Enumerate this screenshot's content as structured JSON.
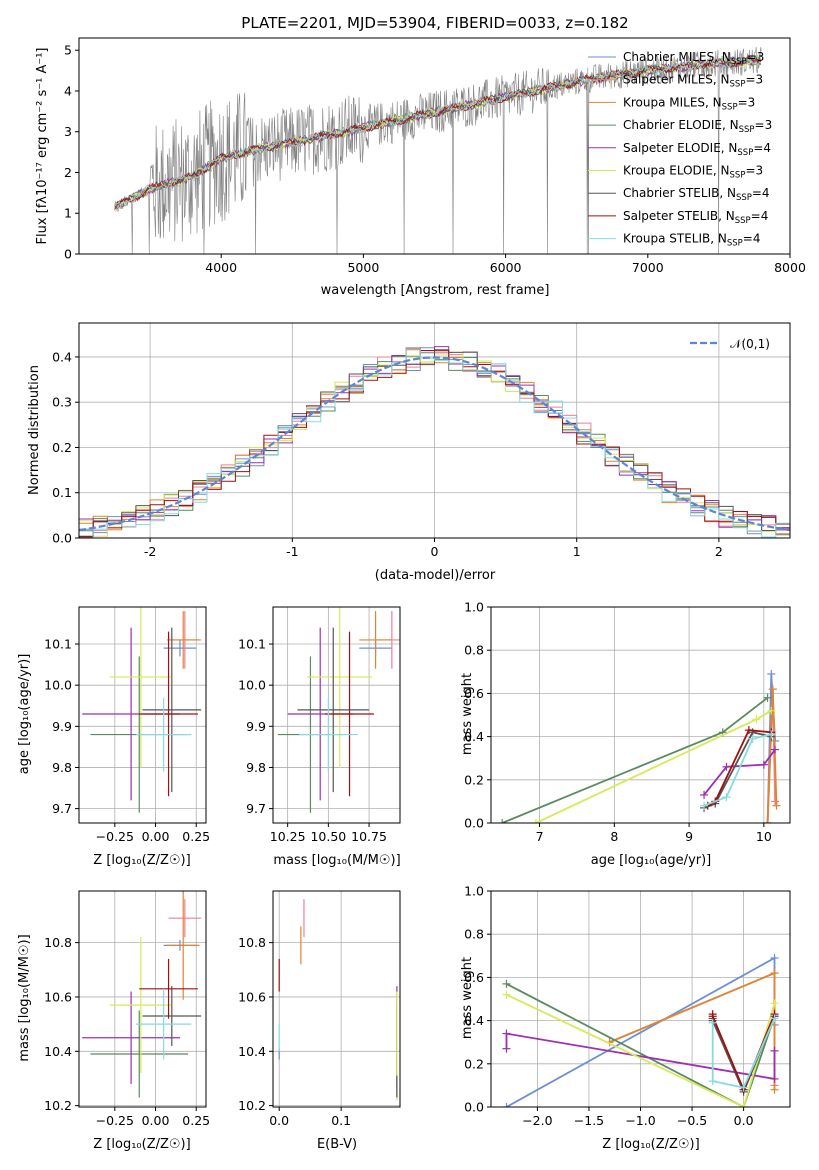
{
  "figure_title": "PLATE=2201, MJD=53904, FIBERID=0033, z=0.182",
  "models": [
    {
      "name": "Chabrier MILES",
      "nssp": "3",
      "color": "#6b8fd6"
    },
    {
      "name": "Salpeter MILES",
      "nssp": "3",
      "color": "#ee7f9c"
    },
    {
      "name": "Kroupa MILES",
      "nssp": "3",
      "color": "#e2842e"
    },
    {
      "name": "Chabrier ELODIE",
      "nssp": "3",
      "color": "#5a8a63"
    },
    {
      "name": "Salpeter ELODIE",
      "nssp": "4",
      "color": "#9b30b0"
    },
    {
      "name": "Kroupa ELODIE",
      "nssp": "3",
      "color": "#d7ea55"
    },
    {
      "name": "Chabrier STELIB",
      "nssp": "4",
      "color": "#555555"
    },
    {
      "name": "Salpeter STELIB",
      "nssp": "4",
      "color": "#a01010"
    },
    {
      "name": "Kroupa STELIB",
      "nssp": "4",
      "color": "#86dbe0"
    }
  ],
  "chart_data": [
    {
      "id": "spectrum",
      "type": "line",
      "xlabel": "wavelength [Angstrom, rest frame]",
      "ylabel": "Flux [fλ10⁻¹⁷ erg cm⁻² s⁻¹ A⁻¹]",
      "xlim": [
        3000,
        8000
      ],
      "ylim": [
        0,
        5.3
      ],
      "xticks": [
        4000,
        5000,
        6000,
        7000,
        8000
      ],
      "yticks": [
        0,
        1,
        2,
        3,
        4,
        5
      ],
      "legend": "top-right",
      "grid": false,
      "data_color": "#808080",
      "continuum": {
        "x": [
          3250,
          3500,
          3800,
          4000,
          4300,
          4600,
          5000,
          5400,
          5800,
          6200,
          6600,
          7000,
          7400,
          7800
        ],
        "y": [
          1.15,
          1.6,
          1.9,
          2.35,
          2.6,
          2.8,
          3.1,
          3.4,
          3.7,
          4.0,
          4.3,
          4.5,
          4.65,
          4.75
        ]
      }
    },
    {
      "id": "residuals",
      "type": "step",
      "xlabel": "(data-model)/error",
      "ylabel": "Normed distribution",
      "xlim": [
        -2.5,
        2.5
      ],
      "ylim": [
        0,
        0.475
      ],
      "xticks": [
        -2,
        -1,
        0,
        1,
        2
      ],
      "yticks": [
        0.0,
        0.1,
        0.2,
        0.3,
        0.4
      ],
      "grid": true,
      "legend": "top-right",
      "gaussian_label": "𝒩(0,1)",
      "gaussian_color": "#5b85d8",
      "bin_width": 0.1
    },
    {
      "id": "age_vs_Z",
      "type": "errorbar",
      "xlabel": "Z [log₁₀(Z/Z☉)]",
      "ylabel": "age  [log₁₀(age/yr)]",
      "xlim": [
        -0.47,
        0.31
      ],
      "ylim": [
        9.665,
        10.19
      ],
      "xticks": [
        -0.25,
        0.0,
        0.25
      ],
      "xtick_labels": [
        "−0.25",
        "0.00",
        "0.25"
      ],
      "yticks": [
        9.7,
        9.8,
        9.9,
        10.0,
        10.1
      ],
      "grid": true,
      "points": [
        {
          "x": 0.15,
          "y": 10.09,
          "xe": 0.1,
          "ye": 0.02,
          "c": "#6b8fd6"
        },
        {
          "x": 0.18,
          "y": 10.11,
          "xe": 0.1,
          "ye": 0.07,
          "c": "#ee7f9c"
        },
        {
          "x": 0.17,
          "y": 10.11,
          "xe": 0.1,
          "ye": 0.07,
          "c": "#e2842e"
        },
        {
          "x": -0.1,
          "y": 9.88,
          "xe": 0.3,
          "ye": 0.19,
          "c": "#5a8a63"
        },
        {
          "x": -0.15,
          "y": 9.93,
          "xe": 0.3,
          "ye": 0.21,
          "c": "#9b30b0"
        },
        {
          "x": -0.09,
          "y": 10.02,
          "xe": 0.19,
          "ye": 0.22,
          "c": "#d7ea55"
        },
        {
          "x": 0.1,
          "y": 9.94,
          "xe": 0.18,
          "ye": 0.2,
          "c": "#555555"
        },
        {
          "x": 0.08,
          "y": 9.93,
          "xe": 0.18,
          "ye": 0.2,
          "c": "#a01010"
        },
        {
          "x": 0.05,
          "y": 9.88,
          "xe": 0.17,
          "ye": 0.09,
          "c": "#86dbe0"
        }
      ]
    },
    {
      "id": "age_vs_mass",
      "type": "errorbar",
      "xlabel": "mass [log₁₀(M/M☉)]",
      "ylabel": "",
      "xlim": [
        10.16,
        10.94
      ],
      "ylim": [
        9.665,
        10.19
      ],
      "xticks": [
        10.25,
        10.5,
        10.75
      ],
      "xtick_labels": [
        "10.25",
        "10.50",
        "10.75"
      ],
      "yticks": [
        9.7,
        9.8,
        9.9,
        10.0,
        10.1
      ],
      "grid": true,
      "points": [
        {
          "x": 10.79,
          "y": 10.09,
          "xe": 0.1,
          "ye": 0.02,
          "c": "#6b8fd6"
        },
        {
          "x": 10.89,
          "y": 10.11,
          "xe": 0.1,
          "ye": 0.07,
          "c": "#ee7f9c"
        },
        {
          "x": 10.79,
          "y": 10.11,
          "xe": 0.1,
          "ye": 0.07,
          "c": "#e2842e"
        },
        {
          "x": 10.39,
          "y": 9.88,
          "xe": 0.2,
          "ye": 0.19,
          "c": "#5a8a63"
        },
        {
          "x": 10.45,
          "y": 9.93,
          "xe": 0.2,
          "ye": 0.21,
          "c": "#9b30b0"
        },
        {
          "x": 10.57,
          "y": 10.02,
          "xe": 0.2,
          "ye": 0.22,
          "c": "#d7ea55"
        },
        {
          "x": 10.53,
          "y": 9.94,
          "xe": 0.22,
          "ye": 0.2,
          "c": "#555555"
        },
        {
          "x": 10.63,
          "y": 9.93,
          "xe": 0.15,
          "ye": 0.2,
          "c": "#a01010"
        },
        {
          "x": 10.5,
          "y": 9.88,
          "xe": 0.18,
          "ye": 0.09,
          "c": "#86dbe0"
        }
      ]
    },
    {
      "id": "mw_vs_age",
      "type": "line",
      "xlabel": "age  [log₁₀(age/yr)]",
      "ylabel": "mass weight",
      "xlim": [
        6.35,
        10.35
      ],
      "ylim": [
        0,
        1
      ],
      "xticks": [
        7,
        8,
        9,
        10
      ],
      "yticks": [
        0.0,
        0.2,
        0.4,
        0.6,
        0.8,
        1.0
      ],
      "grid": true,
      "series": [
        {
          "c": "#6b8fd6",
          "x": [
            10.05,
            10.1,
            10.15
          ],
          "y": [
            0.0,
            0.69,
            0.38
          ]
        },
        {
          "c": "#ee7f9c",
          "x": [
            10.05,
            10.12,
            10.15
          ],
          "y": [
            0.0,
            0.62,
            0.1
          ]
        },
        {
          "c": "#e2842e",
          "x": [
            10.05,
            10.12,
            10.17
          ],
          "y": [
            0.0,
            0.62,
            0.08
          ]
        },
        {
          "c": "#5a8a63",
          "x": [
            6.5,
            9.45,
            10.05
          ],
          "y": [
            0.0,
            0.42,
            0.58
          ]
        },
        {
          "c": "#9b30b0",
          "x": [
            9.2,
            9.5,
            10.0,
            10.15
          ],
          "y": [
            0.13,
            0.26,
            0.27,
            0.34
          ]
        },
        {
          "c": "#d7ea55",
          "x": [
            6.95,
            9.9,
            10.1
          ],
          "y": [
            0.0,
            0.48,
            0.52
          ]
        },
        {
          "c": "#555555",
          "x": [
            9.2,
            9.35,
            9.85,
            10.1
          ],
          "y": [
            0.07,
            0.09,
            0.42,
            0.4
          ]
        },
        {
          "c": "#a01010",
          "x": [
            9.25,
            9.35,
            9.8,
            10.1
          ],
          "y": [
            0.08,
            0.1,
            0.43,
            0.42
          ]
        },
        {
          "c": "#86dbe0",
          "x": [
            9.2,
            9.5,
            9.85,
            10.1
          ],
          "y": [
            0.08,
            0.12,
            0.39,
            0.41
          ]
        }
      ]
    },
    {
      "id": "mass_vs_Z",
      "type": "errorbar",
      "xlabel": "Z [log₁₀(Z/Z☉)]",
      "ylabel": "mass [log₁₀(M/M☉)]",
      "xlim": [
        -0.47,
        0.31
      ],
      "ylim": [
        10.195,
        10.99
      ],
      "xticks": [
        -0.25,
        0.0,
        0.25
      ],
      "xtick_labels": [
        "−0.25",
        "0.00",
        "0.25"
      ],
      "yticks": [
        10.2,
        10.4,
        10.6,
        10.8
      ],
      "grid": true,
      "points": [
        {
          "x": 0.15,
          "y": 10.79,
          "xe": 0.1,
          "ye": 0.02,
          "c": "#6b8fd6"
        },
        {
          "x": 0.18,
          "y": 10.89,
          "xe": 0.1,
          "ye": 0.07,
          "c": "#ee7f9c"
        },
        {
          "x": 0.17,
          "y": 10.79,
          "xe": 0.1,
          "ye": 0.2,
          "c": "#e2842e"
        },
        {
          "x": -0.1,
          "y": 10.39,
          "xe": 0.3,
          "ye": 0.16,
          "c": "#5a8a63"
        },
        {
          "x": -0.15,
          "y": 10.45,
          "xe": 0.3,
          "ye": 0.17,
          "c": "#9b30b0"
        },
        {
          "x": -0.09,
          "y": 10.57,
          "xe": 0.19,
          "ye": 0.25,
          "c": "#d7ea55"
        },
        {
          "x": 0.1,
          "y": 10.53,
          "xe": 0.18,
          "ye": 0.11,
          "c": "#555555"
        },
        {
          "x": 0.08,
          "y": 10.63,
          "xe": 0.18,
          "ye": 0.11,
          "c": "#a01010"
        },
        {
          "x": 0.05,
          "y": 10.5,
          "xe": 0.17,
          "ye": 0.13,
          "c": "#86dbe0"
        }
      ]
    },
    {
      "id": "mass_vs_EBV",
      "type": "errorbar",
      "xlabel": "E(B-V)",
      "ylabel": "",
      "xlim": [
        -0.01,
        0.195
      ],
      "ylim": [
        10.195,
        10.99
      ],
      "xticks": [
        0.0,
        0.1
      ],
      "xtick_labels": [
        "0.0",
        "0.1"
      ],
      "yticks": [
        10.2,
        10.4,
        10.6,
        10.8
      ],
      "grid": true,
      "points": [
        {
          "x": 0.0,
          "y": 10.39,
          "xe": 0,
          "ye": 0.02,
          "c": "#6b8fd6"
        },
        {
          "x": 0.04,
          "y": 10.89,
          "xe": 0,
          "ye": 0.07,
          "c": "#ee7f9c"
        },
        {
          "x": 0.035,
          "y": 10.79,
          "xe": 0,
          "ye": 0.07,
          "c": "#e2842e"
        },
        {
          "x": 0.19,
          "y": 10.4,
          "xe": 0,
          "ye": 0.17,
          "c": "#5a8a63"
        },
        {
          "x": 0.19,
          "y": 10.45,
          "xe": 0,
          "ye": 0.19,
          "c": "#9b30b0"
        },
        {
          "x": 0.19,
          "y": 10.42,
          "xe": 0,
          "ye": 0.2,
          "c": "#d7ea55"
        },
        {
          "x": 0.19,
          "y": 10.27,
          "xe": 0,
          "ye": 0.04,
          "c": "#555555"
        },
        {
          "x": 0.0,
          "y": 10.68,
          "xe": 0,
          "ye": 0.06,
          "c": "#a01010"
        },
        {
          "x": 0.0,
          "y": 10.45,
          "xe": 0,
          "ye": 0.05,
          "c": "#86dbe0"
        }
      ]
    },
    {
      "id": "mw_vs_Z",
      "type": "line",
      "xlabel": "Z [log₁₀(Z/Z☉)]",
      "ylabel": "mass weight",
      "xlim": [
        -2.45,
        0.45
      ],
      "ylim": [
        0,
        1
      ],
      "xticks": [
        -2.0,
        -1.5,
        -1.0,
        -0.5,
        0.0
      ],
      "xtick_labels": [
        "−2.0",
        "−1.5",
        "−1.0",
        "−0.5",
        "0.0"
      ],
      "yticks": [
        0.0,
        0.2,
        0.4,
        0.6,
        0.8,
        1.0
      ],
      "grid": true,
      "series": [
        {
          "c": "#6b8fd6",
          "x": [
            -2.3,
            0.3,
            0.3
          ],
          "y": [
            0.0,
            0.69,
            0.38
          ]
        },
        {
          "c": "#ee7f9c",
          "x": [
            -1.3,
            0.3,
            0.3
          ],
          "y": [
            0.3,
            0.62,
            0.1
          ]
        },
        {
          "c": "#e2842e",
          "x": [
            -1.3,
            0.3,
            0.3
          ],
          "y": [
            0.3,
            0.62,
            0.08
          ]
        },
        {
          "c": "#5a8a63",
          "x": [
            -2.3,
            0.0,
            0.3
          ],
          "y": [
            0.57,
            0.0,
            0.42
          ]
        },
        {
          "c": "#9b30b0",
          "x": [
            -2.3,
            -2.3,
            0.3,
            0.3
          ],
          "y": [
            0.27,
            0.34,
            0.13,
            0.26
          ]
        },
        {
          "c": "#d7ea55",
          "x": [
            -2.3,
            0.0,
            0.3
          ],
          "y": [
            0.52,
            0.0,
            0.48
          ]
        },
        {
          "c": "#555555",
          "x": [
            -0.3,
            -0.3,
            0.0,
            0.3
          ],
          "y": [
            0.41,
            0.4,
            0.07,
            0.42
          ]
        },
        {
          "c": "#a01010",
          "x": [
            -0.3,
            -0.3,
            0.0,
            0.3
          ],
          "y": [
            0.43,
            0.42,
            0.08,
            0.43
          ]
        },
        {
          "c": "#86dbe0",
          "x": [
            -0.3,
            -0.3,
            0.0,
            0.3
          ],
          "y": [
            0.39,
            0.12,
            0.09,
            0.41
          ]
        }
      ]
    }
  ]
}
